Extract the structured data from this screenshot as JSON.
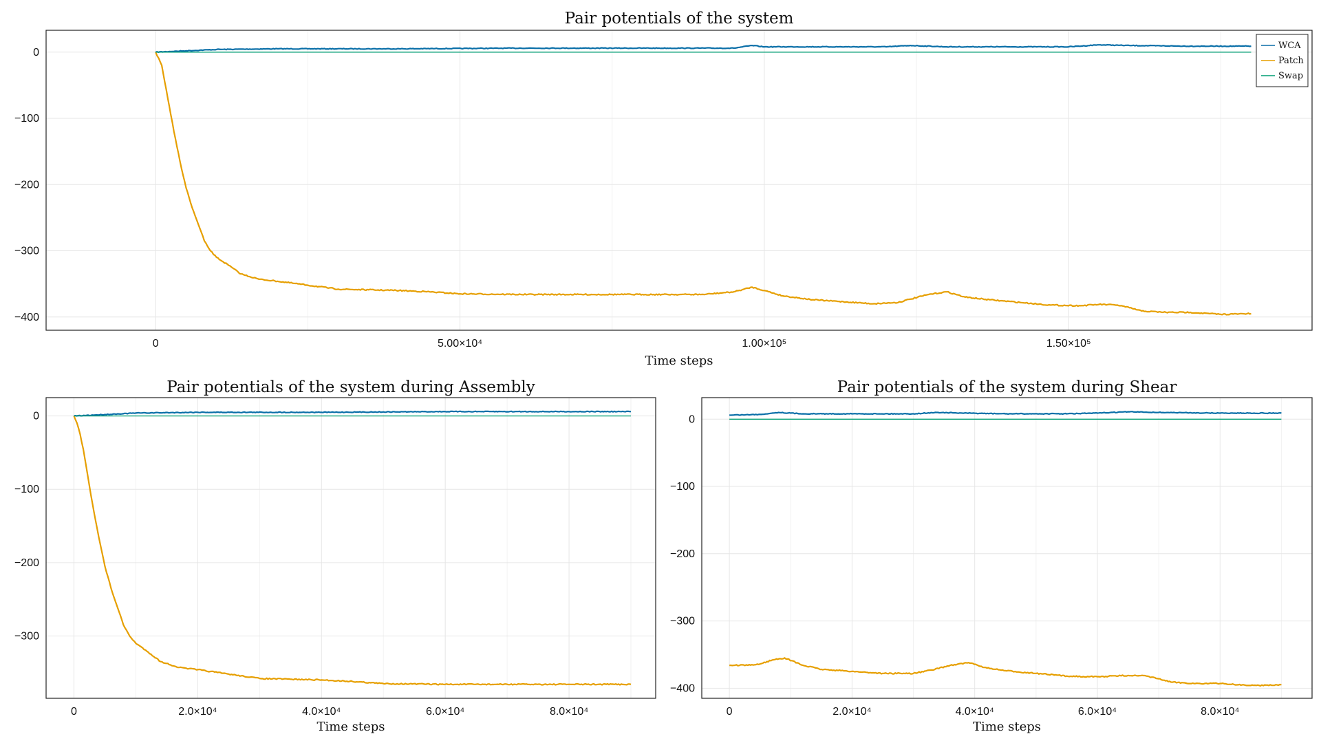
{
  "colors": {
    "WCA": "#0a6fa8",
    "Patch": "#e69f00",
    "Swap": "#009e73"
  },
  "chart_data": [
    {
      "id": "top",
      "type": "line",
      "title": "Pair potentials of the system",
      "xlabel": "Time steps",
      "ylabel": "",
      "xlim": [
        -18000,
        190000
      ],
      "ylim": [
        -420,
        33
      ],
      "xticks": [
        {
          "v": 0,
          "l": "0"
        },
        {
          "v": 50000,
          "l": "5.00×10⁴"
        },
        {
          "v": 100000,
          "l": "1.00×10⁵"
        },
        {
          "v": 150000,
          "l": "1.50×10⁵"
        }
      ],
      "yticks": [
        {
          "v": 0,
          "l": "0"
        },
        {
          "v": -100,
          "l": "−100"
        },
        {
          "v": -200,
          "l": "−200"
        },
        {
          "v": -300,
          "l": "−300"
        },
        {
          "v": -400,
          "l": "−400"
        }
      ],
      "legend": {
        "entries": [
          "WCA",
          "Patch",
          "Swap"
        ],
        "position": "top-right"
      },
      "series": [
        {
          "name": "WCA",
          "x": [
            0,
            5000,
            10000,
            20000,
            40000,
            60000,
            80000,
            95000,
            98000,
            100000,
            120000,
            124000,
            130000,
            140000,
            150000,
            155000,
            160000,
            170000,
            180000
          ],
          "y": [
            0,
            2,
            4,
            5,
            5,
            6,
            6,
            6,
            10,
            8,
            8,
            10,
            8,
            8,
            8,
            11,
            10,
            9,
            9
          ]
        },
        {
          "name": "Patch",
          "x": [
            0,
            1000,
            2000,
            3000,
            4000,
            5000,
            6000,
            7000,
            8000,
            9000,
            10000,
            12000,
            14000,
            17000,
            20000,
            25000,
            30000,
            35000,
            40000,
            45000,
            50000,
            60000,
            70000,
            80000,
            90000,
            95000,
            98000,
            100000,
            103000,
            108000,
            113000,
            118000,
            122000,
            124000,
            127000,
            130000,
            133000,
            137000,
            142000,
            147000,
            152000,
            155000,
            158000,
            160000,
            162000,
            166000,
            170000,
            175000,
            180000
          ],
          "y": [
            0,
            -20,
            -70,
            -120,
            -165,
            -205,
            -235,
            -260,
            -285,
            -300,
            -310,
            -322,
            -335,
            -343,
            -346,
            -352,
            -358,
            -359,
            -360,
            -362,
            -365,
            -366,
            -366,
            -366,
            -366,
            -362,
            -355,
            -360,
            -368,
            -374,
            -377,
            -380,
            -378,
            -373,
            -366,
            -362,
            -370,
            -374,
            -378,
            -382,
            -383,
            -381,
            -382,
            -386,
            -391,
            -393,
            -393,
            -396,
            -395
          ]
        },
        {
          "name": "Swap",
          "x": [
            0,
            180000
          ],
          "y": [
            0,
            0
          ]
        }
      ]
    },
    {
      "id": "assembly",
      "type": "line",
      "title": "Pair potentials of the system during Assembly",
      "xlabel": "Time steps",
      "ylabel": "",
      "xlim": [
        -4500,
        94000
      ],
      "ylim": [
        -385,
        25
      ],
      "xticks": [
        {
          "v": 0,
          "l": "0"
        },
        {
          "v": 20000,
          "l": "2.0×10⁴"
        },
        {
          "v": 40000,
          "l": "4.0×10⁴"
        },
        {
          "v": 60000,
          "l": "6.0×10⁴"
        },
        {
          "v": 80000,
          "l": "8.0×10⁴"
        }
      ],
      "yticks": [
        {
          "v": 0,
          "l": "0"
        },
        {
          "v": -100,
          "l": "−100"
        },
        {
          "v": -200,
          "l": "−200"
        },
        {
          "v": -300,
          "l": "−300"
        }
      ],
      "series": [
        {
          "name": "WCA",
          "x": [
            0,
            5000,
            10000,
            20000,
            40000,
            60000,
            80000,
            90000
          ],
          "y": [
            0,
            2,
            4,
            5,
            5,
            6,
            6,
            6
          ]
        },
        {
          "name": "Patch",
          "x": [
            0,
            500,
            1000,
            1500,
            2000,
            3000,
            4000,
            5000,
            6000,
            7000,
            8000,
            9000,
            10000,
            12000,
            14000,
            17000,
            20000,
            25000,
            30000,
            35000,
            40000,
            45000,
            50000,
            60000,
            70000,
            80000,
            90000
          ],
          "y": [
            0,
            -10,
            -25,
            -45,
            -70,
            -120,
            -165,
            -205,
            -235,
            -260,
            -285,
            -300,
            -310,
            -322,
            -335,
            -343,
            -346,
            -352,
            -358,
            -359,
            -360,
            -362,
            -365,
            -366,
            -366,
            -366,
            -366
          ]
        },
        {
          "name": "Swap",
          "x": [
            0,
            90000
          ],
          "y": [
            0,
            0
          ]
        }
      ]
    },
    {
      "id": "shear",
      "type": "line",
      "title": "Pair potentials of the system during Shear",
      "xlabel": "Time steps",
      "ylabel": "",
      "xlim": [
        -4500,
        95000
      ],
      "ylim": [
        -415,
        32
      ],
      "xticks": [
        {
          "v": 0,
          "l": "0"
        },
        {
          "v": 20000,
          "l": "2.0×10⁴"
        },
        {
          "v": 40000,
          "l": "4.0×10⁴"
        },
        {
          "v": 60000,
          "l": "6.0×10⁴"
        },
        {
          "v": 80000,
          "l": "8.0×10⁴"
        }
      ],
      "yticks": [
        {
          "v": 0,
          "l": "0"
        },
        {
          "v": -100,
          "l": "−100"
        },
        {
          "v": -200,
          "l": "−200"
        },
        {
          "v": -300,
          "l": "−300"
        },
        {
          "v": -400,
          "l": "−400"
        }
      ],
      "series": [
        {
          "name": "WCA",
          "x": [
            0,
            5000,
            8000,
            12000,
            20000,
            30000,
            34000,
            38000,
            45000,
            55000,
            60000,
            65000,
            70000,
            80000,
            90000
          ],
          "y": [
            6,
            7,
            10,
            8,
            8,
            8,
            10,
            9,
            8,
            8,
            9,
            11,
            10,
            9,
            9
          ]
        },
        {
          "name": "Patch",
          "x": [
            0,
            3000,
            5000,
            7000,
            9000,
            12000,
            15000,
            20000,
            25000,
            30000,
            33000,
            36000,
            39000,
            42000,
            45000,
            50000,
            55000,
            60000,
            65000,
            68000,
            70000,
            72000,
            76000,
            80000,
            85000,
            90000
          ],
          "y": [
            -366,
            -366,
            -364,
            -358,
            -355,
            -366,
            -372,
            -375,
            -378,
            -378,
            -373,
            -366,
            -362,
            -370,
            -374,
            -378,
            -382,
            -383,
            -381,
            -382,
            -386,
            -391,
            -393,
            -393,
            -396,
            -395
          ]
        },
        {
          "name": "Swap",
          "x": [
            0,
            90000
          ],
          "y": [
            0,
            0
          ]
        }
      ]
    }
  ]
}
